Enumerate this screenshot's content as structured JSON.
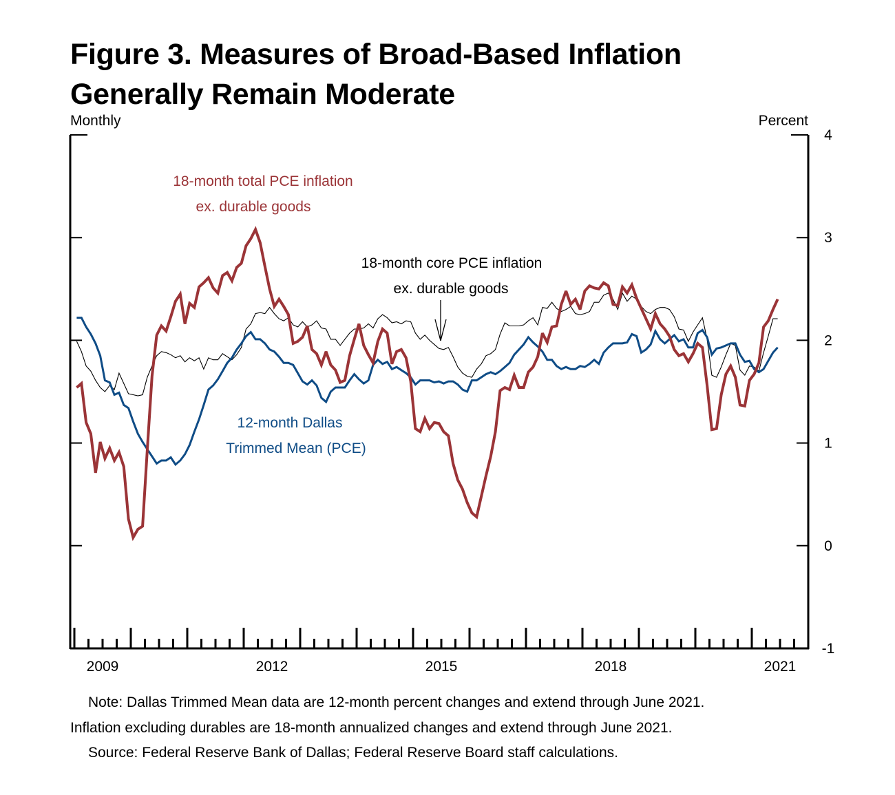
{
  "figure": {
    "title_line1": "Figure 3. Measures of Broad-Based Inflation",
    "title_line2": "Generally Remain Moderate",
    "left_unit": "Monthly",
    "right_unit": "Percent"
  },
  "notes": {
    "note_line1": "Note:  Dallas Trimmed Mean data are 12-month percent changes and extend through June 2021.",
    "note_line2": "Inflation excluding durables are 18-month annualized changes and extend through June 2021.",
    "source": "Source:  Federal Reserve Bank of Dallas; Federal Reserve Board staff calculations."
  },
  "colors": {
    "total_pce": "#9b3437",
    "dallas_trimmed_mean": "#0f4c86",
    "core_pce": "#000000"
  },
  "chart_data": {
    "type": "line",
    "title": "Figure 3. Measures of Broad-Based Inflation Generally Remain Moderate",
    "xlabel": "",
    "ylabel": "Percent",
    "frequency": "Monthly",
    "x_start": "2009-01",
    "x_end": "2021-06",
    "x_tick_labels": [
      "2009",
      "2012",
      "2015",
      "2018",
      "2021"
    ],
    "x_tick_label_years": [
      2009,
      2012,
      2015,
      2018,
      2021
    ],
    "x_axis_years": [
      2009,
      2022
    ],
    "ylim": [
      -1,
      4
    ],
    "y_ticks": [
      -1,
      0,
      1,
      2,
      3,
      4
    ],
    "y_tick_labels": [
      "-1",
      "0",
      "1",
      "2",
      "3",
      "4"
    ],
    "grid": false,
    "annotations": [
      {
        "series": "total_pce",
        "lines": [
          "18-month total PCE inflation",
          "ex. durable goods"
        ]
      },
      {
        "series": "core_pce",
        "lines": [
          "18-month core PCE inflation",
          "ex. durable goods"
        ],
        "arrow": true
      },
      {
        "series": "dallas_trimmed_mean",
        "lines": [
          "12-month Dallas",
          "Trimmed Mean (PCE)"
        ]
      }
    ],
    "series": [
      {
        "key": "total_pce",
        "name": "18-month total PCE inflation ex. durable goods",
        "values": [
          1.54,
          1.58,
          1.2,
          1.09,
          0.71,
          1.01,
          0.85,
          0.95,
          0.83,
          0.91,
          0.77,
          0.26,
          0.08,
          0.16,
          0.19,
          0.93,
          1.65,
          2.05,
          2.14,
          2.09,
          2.23,
          2.38,
          2.45,
          2.16,
          2.36,
          2.32,
          2.52,
          2.56,
          2.61,
          2.51,
          2.46,
          2.63,
          2.66,
          2.58,
          2.71,
          2.75,
          2.92,
          2.99,
          3.08,
          2.95,
          2.72,
          2.5,
          2.33,
          2.4,
          2.33,
          2.25,
          1.97,
          1.99,
          2.03,
          2.14,
          1.91,
          1.87,
          1.76,
          1.89,
          1.76,
          1.71,
          1.59,
          1.61,
          1.85,
          2.01,
          2.16,
          1.95,
          1.86,
          1.78,
          1.99,
          2.11,
          2.07,
          1.77,
          1.89,
          1.91,
          1.83,
          1.6,
          1.14,
          1.11,
          1.24,
          1.14,
          1.2,
          1.19,
          1.11,
          1.07,
          0.8,
          0.64,
          0.55,
          0.42,
          0.32,
          0.28,
          0.48,
          0.68,
          0.87,
          1.11,
          1.51,
          1.54,
          1.52,
          1.66,
          1.54,
          1.54,
          1.69,
          1.74,
          1.84,
          2.07,
          1.98,
          2.13,
          2.14,
          2.35,
          2.48,
          2.35,
          2.4,
          2.3,
          2.48,
          2.53,
          2.51,
          2.5,
          2.56,
          2.53,
          2.35,
          2.34,
          2.52,
          2.46,
          2.54,
          2.41,
          2.31,
          2.21,
          2.11,
          2.26,
          2.16,
          2.11,
          2.04,
          1.91,
          1.85,
          1.87,
          1.79,
          1.87,
          1.97,
          1.93,
          1.56,
          1.13,
          1.14,
          1.47,
          1.67,
          1.75,
          1.64,
          1.37,
          1.36,
          1.61,
          1.67,
          1.78,
          2.13,
          2.19,
          2.3,
          2.4
        ]
      },
      {
        "key": "core_pce",
        "name": "18-month core PCE inflation ex. durable goods",
        "values": [
          1.99,
          1.89,
          1.75,
          1.7,
          1.61,
          1.54,
          1.5,
          1.56,
          1.52,
          1.68,
          1.58,
          1.48,
          1.47,
          1.46,
          1.47,
          1.64,
          1.75,
          1.85,
          1.89,
          1.88,
          1.86,
          1.83,
          1.85,
          1.79,
          1.83,
          1.8,
          1.83,
          1.72,
          1.83,
          1.81,
          1.81,
          1.87,
          1.84,
          1.81,
          1.86,
          1.93,
          2.11,
          2.16,
          2.26,
          2.27,
          2.26,
          2.32,
          2.26,
          2.21,
          2.19,
          2.22,
          2.15,
          2.13,
          2.18,
          2.13,
          2.15,
          2.19,
          2.12,
          2.11,
          2.01,
          2.01,
          1.95,
          2.01,
          2.07,
          2.11,
          2.11,
          2.12,
          2.16,
          2.12,
          2.21,
          2.25,
          2.22,
          2.17,
          2.18,
          2.16,
          2.19,
          2.18,
          2.07,
          2.01,
          2.05,
          2.0,
          1.96,
          1.92,
          1.91,
          1.93,
          1.84,
          1.74,
          1.68,
          1.65,
          1.64,
          1.72,
          1.77,
          1.85,
          1.87,
          1.91,
          2.06,
          2.17,
          2.14,
          2.14,
          2.14,
          2.15,
          2.19,
          2.22,
          2.15,
          2.32,
          2.31,
          2.37,
          2.31,
          2.28,
          2.3,
          2.33,
          2.26,
          2.25,
          2.26,
          2.28,
          2.37,
          2.37,
          2.44,
          2.46,
          2.4,
          2.3,
          2.46,
          2.38,
          2.43,
          2.4,
          2.33,
          2.28,
          2.26,
          2.3,
          2.32,
          2.32,
          2.3,
          2.23,
          2.11,
          2.1,
          1.99,
          2.08,
          2.15,
          2.22,
          2.01,
          1.66,
          1.64,
          1.74,
          1.86,
          1.97,
          1.95,
          1.71,
          1.66,
          1.75,
          1.74,
          1.7,
          1.88,
          2.04,
          2.21,
          2.21
        ]
      },
      {
        "key": "dallas_trimmed_mean",
        "name": "12-month Dallas Trimmed Mean (PCE)",
        "values": [
          2.22,
          2.22,
          2.13,
          2.06,
          1.97,
          1.85,
          1.61,
          1.59,
          1.47,
          1.49,
          1.37,
          1.34,
          1.21,
          1.09,
          1.01,
          0.94,
          0.87,
          0.8,
          0.83,
          0.83,
          0.86,
          0.79,
          0.83,
          0.89,
          0.98,
          1.11,
          1.23,
          1.37,
          1.52,
          1.56,
          1.62,
          1.7,
          1.78,
          1.83,
          1.91,
          1.97,
          2.04,
          2.08,
          2.01,
          2.01,
          1.97,
          1.91,
          1.89,
          1.84,
          1.78,
          1.78,
          1.76,
          1.68,
          1.6,
          1.57,
          1.61,
          1.56,
          1.44,
          1.4,
          1.5,
          1.54,
          1.54,
          1.54,
          1.61,
          1.67,
          1.62,
          1.58,
          1.61,
          1.76,
          1.81,
          1.77,
          1.79,
          1.72,
          1.74,
          1.71,
          1.68,
          1.64,
          1.57,
          1.61,
          1.61,
          1.61,
          1.59,
          1.6,
          1.58,
          1.6,
          1.6,
          1.57,
          1.52,
          1.5,
          1.61,
          1.61,
          1.64,
          1.67,
          1.69,
          1.67,
          1.7,
          1.74,
          1.78,
          1.86,
          1.91,
          1.96,
          2.03,
          1.98,
          1.94,
          1.89,
          1.81,
          1.81,
          1.75,
          1.72,
          1.74,
          1.72,
          1.72,
          1.75,
          1.74,
          1.77,
          1.81,
          1.77,
          1.88,
          1.93,
          1.97,
          1.97,
          1.97,
          1.98,
          2.06,
          2.04,
          1.88,
          1.91,
          1.96,
          2.09,
          2.01,
          1.97,
          2.01,
          2.05,
          1.99,
          2.01,
          1.93,
          1.93,
          2.07,
          2.1,
          2.03,
          1.86,
          1.92,
          1.93,
          1.95,
          1.97,
          1.97,
          1.86,
          1.79,
          1.8,
          1.72,
          1.69,
          1.72,
          1.8,
          1.88,
          1.93
        ]
      }
    ]
  }
}
